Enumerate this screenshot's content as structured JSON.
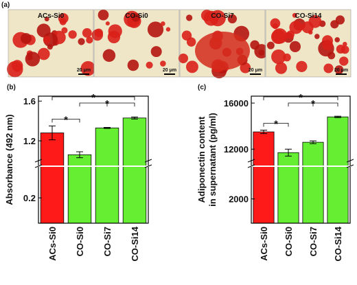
{
  "panel_a": {
    "label": "(a)",
    "images": [
      {
        "title": "ACs-Si0",
        "scale": "20 μm"
      },
      {
        "title": "CO-Si0",
        "scale": "20 μm"
      },
      {
        "title": "CO-Si7",
        "scale": "20 μm"
      },
      {
        "title": "CO-Si14",
        "scale": "20 μm"
      }
    ]
  },
  "chart_data": [
    {
      "type": "bar",
      "panel": "(b)",
      "ylabel": [
        "Absorbance (492 nm)"
      ],
      "categories": [
        "ACs-Si0",
        "CO-Si0",
        "CO-Si7",
        "CO-Si14"
      ],
      "values": [
        1.28,
        1.06,
        1.33,
        1.43
      ],
      "errors": [
        0.07,
        0.03,
        0.005,
        0.01
      ],
      "colors": [
        "#ff1a1a",
        "#66ee33",
        "#66ee33",
        "#66ee33"
      ],
      "ylim": [
        0,
        1.65
      ],
      "ybreak": [
        0.45,
        1.0
      ],
      "yticks": [
        0.2,
        1.2,
        1.6
      ],
      "significance": [
        {
          "pair": [
            0,
            1
          ],
          "label": "*"
        },
        {
          "pair": [
            1,
            3
          ],
          "label": "*"
        },
        {
          "pair": [
            0,
            3
          ],
          "label": "*"
        }
      ]
    },
    {
      "type": "bar",
      "panel": "(c)",
      "ylabel": [
        "Adiponectin content",
        "in supernatant (pg/ml)"
      ],
      "categories": [
        "ACs-Si0",
        "CO-Si0",
        "CO-Si7",
        "CO-Si14"
      ],
      "values": [
        13500,
        11700,
        12600,
        14800
      ],
      "errors": [
        150,
        300,
        120,
        60
      ],
      "colors": [
        "#ff1a1a",
        "#66ee33",
        "#66ee33",
        "#66ee33"
      ],
      "ylim": [
        0,
        16600
      ],
      "ybreak": [
        4700,
        11000
      ],
      "yticks": [
        2000,
        12000,
        16000
      ],
      "significance": [
        {
          "pair": [
            0,
            1
          ],
          "label": "*"
        },
        {
          "pair": [
            1,
            3
          ],
          "label": "*"
        },
        {
          "pair": [
            0,
            3
          ],
          "label": "*"
        }
      ]
    }
  ]
}
